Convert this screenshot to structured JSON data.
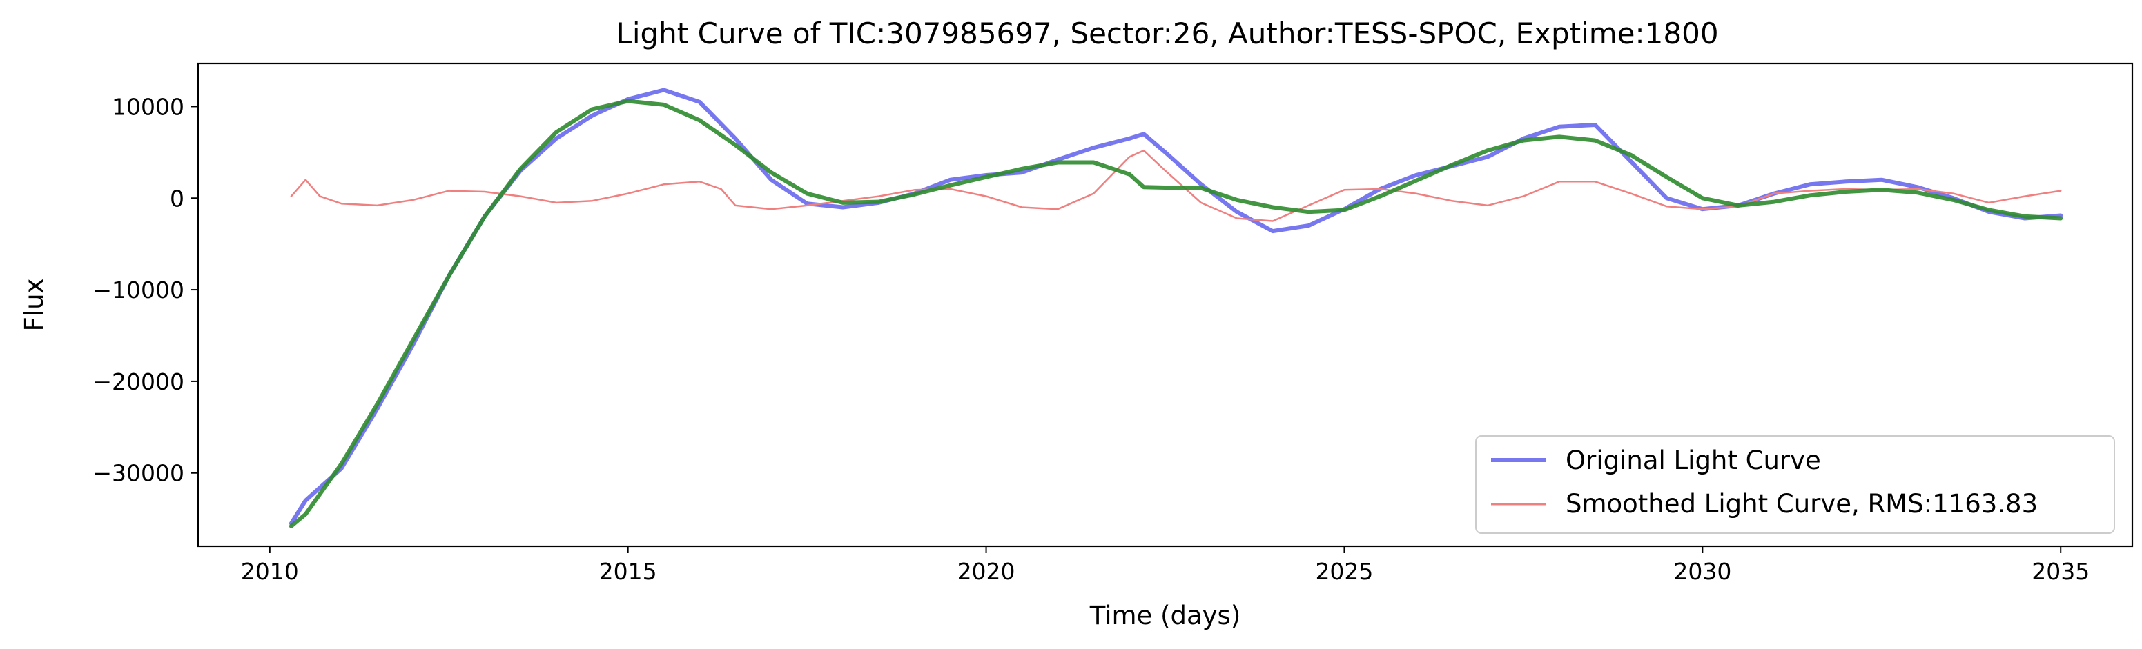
{
  "chart_data": {
    "type": "line",
    "title": "Light Curve of TIC:307985697, Sector:26, Author:TESS-SPOC, Exptime:1800",
    "xlabel": "Time (days)",
    "ylabel": "Flux",
    "xlim": [
      2009.0,
      2036.0
    ],
    "ylim": [
      -38000,
      14700
    ],
    "x_ticks": [
      2010,
      2015,
      2020,
      2025,
      2030,
      2035
    ],
    "x_tick_labels": [
      "2010",
      "2015",
      "2020",
      "2025",
      "2030",
      "2035"
    ],
    "y_ticks": [
      10000,
      0,
      -10000,
      -20000,
      -30000
    ],
    "y_tick_labels": [
      "10000",
      "0",
      "−10000",
      "−20000",
      "−30000"
    ],
    "grid": false,
    "legend_position": "lower-right",
    "series": [
      {
        "name": "Original Light Curve",
        "color": "#7777f0",
        "x": [
          2010.3,
          2010.5,
          2011.0,
          2011.5,
          2012.0,
          2012.5,
          2013.0,
          2013.5,
          2014.0,
          2014.5,
          2015.0,
          2015.5,
          2016.0,
          2016.5,
          2017.0,
          2017.5,
          2018.0,
          2018.5,
          2019.0,
          2019.5,
          2020.0,
          2020.5,
          2021.0,
          2021.5,
          2022.0,
          2022.2,
          2022.5,
          2023.0,
          2023.5,
          2024.0,
          2024.5,
          2025.0,
          2025.5,
          2026.0,
          2026.5,
          2027.0,
          2027.5,
          2028.0,
          2028.5,
          2029.0,
          2029.5,
          2030.0,
          2030.5,
          2031.0,
          2031.5,
          2032.0,
          2032.5,
          2033.0,
          2033.5,
          2034.0,
          2034.5,
          2035.0
        ],
        "y": [
          -35500,
          -33000,
          -29500,
          -23000,
          -16000,
          -8500,
          -2000,
          3000,
          6500,
          9000,
          10800,
          11800,
          10500,
          6500,
          2000,
          -600,
          -1000,
          -500,
          500,
          2000,
          2500,
          2800,
          4200,
          5500,
          6500,
          7000,
          5000,
          1500,
          -1500,
          -3600,
          -3000,
          -1200,
          1000,
          2500,
          3500,
          4500,
          6500,
          7800,
          8000,
          4000,
          0,
          -1200,
          -800,
          500,
          1500,
          1800,
          2000,
          1200,
          0,
          -1500,
          -2200,
          -1900
        ]
      },
      {
        "name": "Smoothed Light Curve, RMS:1163.83",
        "color": "#f08080",
        "x": [
          2010.3,
          2010.5,
          2010.7,
          2011.0,
          2011.5,
          2012.0,
          2012.5,
          2013.0,
          2013.5,
          2014.0,
          2014.5,
          2015.0,
          2015.5,
          2016.0,
          2016.3,
          2016.5,
          2017.0,
          2017.5,
          2018.0,
          2018.5,
          2019.0,
          2019.5,
          2020.0,
          2020.5,
          2021.0,
          2021.5,
          2022.0,
          2022.2,
          2022.5,
          2023.0,
          2023.5,
          2024.0,
          2024.5,
          2025.0,
          2025.5,
          2026.0,
          2026.5,
          2027.0,
          2027.5,
          2028.0,
          2028.5,
          2029.0,
          2029.5,
          2030.0,
          2030.5,
          2031.0,
          2031.5,
          2032.0,
          2032.5,
          2033.0,
          2033.5,
          2034.0,
          2034.5,
          2035.0
        ],
        "y": [
          200,
          2000,
          200,
          -600,
          -800,
          -200,
          800,
          700,
          200,
          -500,
          -300,
          500,
          1500,
          1800,
          1000,
          -800,
          -1200,
          -800,
          -300,
          200,
          900,
          1000,
          200,
          -1000,
          -1200,
          500,
          4500,
          5200,
          3000,
          -500,
          -2200,
          -2500,
          -800,
          900,
          1000,
          500,
          -300,
          -800,
          200,
          1800,
          1800,
          500,
          -900,
          -1200,
          -900,
          500,
          800,
          1000,
          900,
          1000,
          500,
          -500,
          200,
          800
        ]
      },
      {
        "name": "",
        "color": "#2e8b2e",
        "x": [
          2010.3,
          2010.5,
          2011.0,
          2011.5,
          2012.0,
          2012.5,
          2013.0,
          2013.5,
          2014.0,
          2014.5,
          2015.0,
          2015.5,
          2016.0,
          2016.5,
          2017.0,
          2017.5,
          2018.0,
          2018.5,
          2019.0,
          2019.5,
          2020.0,
          2020.5,
          2021.0,
          2021.5,
          2022.0,
          2022.2,
          2022.5,
          2023.0,
          2023.5,
          2024.0,
          2024.5,
          2025.0,
          2025.5,
          2026.0,
          2026.5,
          2027.0,
          2027.5,
          2028.0,
          2028.5,
          2029.0,
          2029.5,
          2030.0,
          2030.5,
          2031.0,
          2031.5,
          2032.0,
          2032.5,
          2033.0,
          2033.5,
          2034.0,
          2034.5,
          2035.0
        ],
        "y": [
          -35800,
          -34500,
          -29000,
          -22500,
          -15500,
          -8500,
          -2000,
          3200,
          7200,
          9700,
          10600,
          10200,
          8500,
          5800,
          2800,
          500,
          -500,
          -400,
          400,
          1400,
          2300,
          3200,
          3900,
          3900,
          2600,
          1200,
          1150,
          1100,
          -200,
          -1000,
          -1500,
          -1300,
          200,
          1900,
          3600,
          5200,
          6300,
          6700,
          6300,
          4700,
          2300,
          0,
          -800,
          -400,
          300,
          700,
          900,
          600,
          -200,
          -1300,
          -2000,
          -2200
        ]
      }
    ]
  }
}
